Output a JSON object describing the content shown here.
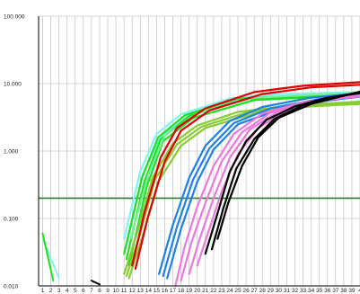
{
  "chart_data": {
    "type": "line",
    "title": "",
    "xlabel": "",
    "ylabel": "",
    "y_scale": "log",
    "ylim": [
      0.01,
      100
    ],
    "xlim": [
      0.5,
      40
    ],
    "grid": true,
    "legend": "none",
    "y_ticks": [
      {
        "value": 100,
        "label": "100.000"
      },
      {
        "value": 10,
        "label": "10.000"
      },
      {
        "value": 1,
        "label": "1.000"
      },
      {
        "value": 0.1,
        "label": "0.100"
      },
      {
        "value": 0.01,
        "label": "0.010"
      }
    ],
    "x_ticks": [
      "1",
      "2",
      "3",
      "4",
      "5",
      "6",
      "7",
      "8",
      "9",
      "10",
      "11",
      "12",
      "13",
      "14",
      "15",
      "16",
      "17",
      "18",
      "19",
      "20",
      "21",
      "22",
      "23",
      "24",
      "25",
      "26",
      "27",
      "28",
      "29",
      "30",
      "31",
      "32",
      "33",
      "34",
      "35",
      "36",
      "37",
      "38",
      "39",
      "4"
    ],
    "threshold": {
      "value": 0.2,
      "color": "#2e7d32"
    },
    "colors": {
      "axis": "#000000",
      "grid": "#c8c8c8",
      "cyan": "#7ff5f0",
      "green": "#22dd22",
      "lime": "#88cc33",
      "seafoam": "#77ee99",
      "red": "#dd0000",
      "blue": "#1e7fe6",
      "pink": "#ee77dd",
      "black": "#000000"
    },
    "series": [
      {
        "color": "cyan",
        "early": [
          [
            1,
            0.05
          ],
          [
            3,
            0.013
          ]
        ],
        "points": [
          [
            11,
            0.05
          ],
          [
            13,
            0.5
          ],
          [
            15,
            1.8
          ],
          [
            18,
            3.5
          ],
          [
            24,
            6
          ],
          [
            30,
            7
          ],
          [
            40,
            7.5
          ]
        ]
      },
      {
        "color": "cyan",
        "points": [
          [
            11.3,
            0.04
          ],
          [
            13.3,
            0.45
          ],
          [
            15.5,
            1.6
          ],
          [
            19,
            3.4
          ],
          [
            25,
            5.8
          ],
          [
            40,
            7.3
          ]
        ]
      },
      {
        "color": "green",
        "early": [
          [
            1,
            0.06
          ],
          [
            2.3,
            0.012
          ]
        ],
        "points": [
          [
            11,
            0.03
          ],
          [
            13.2,
            0.4
          ],
          [
            15.2,
            1.6
          ],
          [
            18.5,
            3.4
          ],
          [
            25,
            6
          ],
          [
            40,
            7.2
          ]
        ]
      },
      {
        "color": "green",
        "points": [
          [
            11.3,
            0.025
          ],
          [
            13.5,
            0.35
          ],
          [
            15.5,
            1.5
          ],
          [
            19,
            3.3
          ],
          [
            26,
            5.9
          ],
          [
            40,
            7
          ]
        ]
      },
      {
        "color": "green",
        "points": [
          [
            11.6,
            0.02
          ],
          [
            13.8,
            0.3
          ],
          [
            15.8,
            1.4
          ],
          [
            19.5,
            3.1
          ],
          [
            27,
            5.7
          ],
          [
            40,
            6.8
          ]
        ]
      },
      {
        "color": "seafoam",
        "points": [
          [
            11.8,
            0.05
          ],
          [
            14,
            0.45
          ],
          [
            16,
            1.7
          ],
          [
            20,
            3.6
          ],
          [
            27,
            6.2
          ],
          [
            40,
            7.4
          ]
        ]
      },
      {
        "color": "lime",
        "points": [
          [
            11,
            0.015
          ],
          [
            12.6,
            0.06
          ],
          [
            14.5,
            0.4
          ],
          [
            17,
            1.3
          ],
          [
            20,
            2.4
          ],
          [
            25,
            3.8
          ],
          [
            32,
            4.8
          ],
          [
            40,
            5.4
          ]
        ]
      },
      {
        "color": "lime",
        "points": [
          [
            11.3,
            0.014
          ],
          [
            12.9,
            0.055
          ],
          [
            14.8,
            0.38
          ],
          [
            17.5,
            1.25
          ],
          [
            20.5,
            2.3
          ],
          [
            26,
            3.7
          ],
          [
            33,
            4.7
          ],
          [
            40,
            5.2
          ]
        ]
      },
      {
        "color": "lime",
        "points": [
          [
            11.6,
            0.013
          ],
          [
            13.2,
            0.05
          ],
          [
            15.2,
            0.35
          ],
          [
            18,
            1.2
          ],
          [
            21,
            2.2
          ],
          [
            27,
            3.6
          ],
          [
            34,
            4.6
          ],
          [
            40,
            5
          ]
        ]
      },
      {
        "color": "red",
        "points": [
          [
            12,
            0.02
          ],
          [
            13.5,
            0.12
          ],
          [
            15.5,
            0.8
          ],
          [
            17.5,
            2.2
          ],
          [
            21,
            4.3
          ],
          [
            27,
            7.5
          ],
          [
            33,
            9.3
          ],
          [
            40,
            10.5
          ]
        ]
      },
      {
        "color": "red",
        "points": [
          [
            12.4,
            0.018
          ],
          [
            13.9,
            0.1
          ],
          [
            16,
            0.7
          ],
          [
            18,
            2
          ],
          [
            21.5,
            4
          ],
          [
            28,
            7
          ],
          [
            34,
            8.8
          ],
          [
            40,
            9.6
          ]
        ]
      },
      {
        "color": "blue",
        "points": [
          [
            15.3,
            0.015
          ],
          [
            17,
            0.08
          ],
          [
            19,
            0.4
          ],
          [
            21,
            1.2
          ],
          [
            24,
            2.8
          ],
          [
            28,
            4.5
          ],
          [
            34,
            6.2
          ],
          [
            40,
            7.2
          ]
        ]
      },
      {
        "color": "blue",
        "points": [
          [
            15.8,
            0.014
          ],
          [
            17.5,
            0.075
          ],
          [
            19.5,
            0.38
          ],
          [
            21.5,
            1.1
          ],
          [
            24.5,
            2.6
          ],
          [
            29,
            4.3
          ],
          [
            35,
            5.9
          ],
          [
            40,
            6.8
          ]
        ]
      },
      {
        "color": "blue",
        "points": [
          [
            16.3,
            0.013
          ],
          [
            18,
            0.07
          ],
          [
            20,
            0.35
          ],
          [
            22,
            1.05
          ],
          [
            25,
            2.5
          ],
          [
            30,
            4.1
          ],
          [
            36,
            5.6
          ],
          [
            40,
            6.4
          ]
        ]
      },
      {
        "color": "pink",
        "points": [
          [
            17.3,
            0.01
          ],
          [
            18.5,
            0.04
          ],
          [
            20,
            0.15
          ],
          [
            22,
            0.6
          ],
          [
            24.5,
            1.8
          ],
          [
            28,
            3.6
          ],
          [
            33,
            5.3
          ],
          [
            40,
            6.5
          ]
        ]
      },
      {
        "color": "pink",
        "points": [
          [
            18,
            0.012
          ],
          [
            19.3,
            0.045
          ],
          [
            21,
            0.17
          ],
          [
            23,
            0.7
          ],
          [
            25.5,
            1.9
          ],
          [
            29,
            3.7
          ],
          [
            34,
            5.4
          ],
          [
            40,
            6.6
          ]
        ]
      },
      {
        "color": "pink",
        "points": [
          [
            19,
            0.015
          ],
          [
            20.3,
            0.05
          ],
          [
            22,
            0.2
          ],
          [
            24,
            0.8
          ],
          [
            26.5,
            2.1
          ],
          [
            30,
            3.9
          ],
          [
            35,
            5.6
          ],
          [
            40,
            6.8
          ]
        ]
      },
      {
        "color": "pink",
        "points": [
          [
            20,
            0.02
          ],
          [
            21.3,
            0.06
          ],
          [
            23,
            0.25
          ],
          [
            25,
            0.9
          ],
          [
            27.5,
            2.2
          ],
          [
            31,
            4
          ],
          [
            36,
            5.7
          ],
          [
            40,
            6.9
          ]
        ]
      },
      {
        "color": "black",
        "early": [
          [
            7,
            0.012
          ],
          [
            8,
            0.0105
          ]
        ],
        "points": [
          [
            21,
            0.03
          ],
          [
            22.5,
            0.12
          ],
          [
            24,
            0.5
          ],
          [
            26,
            1.4
          ],
          [
            28.5,
            2.9
          ],
          [
            32,
            4.6
          ],
          [
            36,
            6.2
          ],
          [
            40,
            7.2
          ]
        ]
      },
      {
        "color": "black",
        "points": [
          [
            21.8,
            0.035
          ],
          [
            23.2,
            0.14
          ],
          [
            24.8,
            0.55
          ],
          [
            27,
            1.5
          ],
          [
            29.5,
            3
          ],
          [
            33,
            4.8
          ],
          [
            37,
            6.4
          ],
          [
            40,
            7.4
          ]
        ]
      },
      {
        "color": "black",
        "points": [
          [
            22.5,
            0.05
          ],
          [
            23.8,
            0.17
          ],
          [
            25.5,
            0.6
          ],
          [
            27.5,
            1.6
          ],
          [
            30,
            3.1
          ],
          [
            34,
            5
          ],
          [
            38,
            6.6
          ],
          [
            40,
            7.6
          ]
        ]
      }
    ]
  }
}
